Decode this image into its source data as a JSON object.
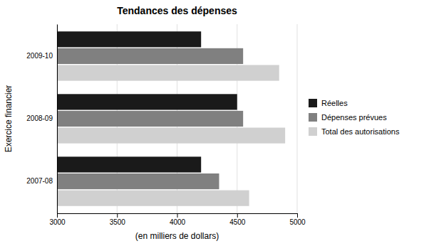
{
  "chart_data": {
    "type": "bar",
    "orientation": "horizontal",
    "title": "Tendances des dépenses",
    "xlabel": "(en milliers de dollars)",
    "ylabel": "Exercice financier",
    "categories": [
      "2007-08",
      "2008-09",
      "2009-10"
    ],
    "series": [
      {
        "name": "Réelles",
        "color": "#1a1a1a",
        "values": [
          4200,
          4500,
          4200
        ]
      },
      {
        "name": "Dépenses prévues",
        "color": "#808080",
        "values": [
          4350,
          4550,
          4550
        ]
      },
      {
        "name": "Total des autorisations",
        "color": "#d0d0d0",
        "values": [
          4600,
          4900,
          4850
        ]
      }
    ],
    "xlim": [
      3000,
      5000
    ],
    "xticks": [
      3000,
      3500,
      4000,
      4500,
      5000
    ],
    "grid": true,
    "legend": "right"
  }
}
